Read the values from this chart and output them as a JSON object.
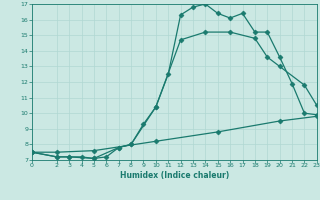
{
  "xlabel": "Humidex (Indice chaleur)",
  "bg_color": "#cbe8e3",
  "line_color": "#1a7a6e",
  "grid_color": "#b0d8d2",
  "xlim": [
    0,
    23
  ],
  "ylim": [
    7,
    17
  ],
  "xticks": [
    0,
    2,
    3,
    4,
    5,
    6,
    7,
    8,
    9,
    10,
    11,
    12,
    13,
    14,
    15,
    16,
    17,
    18,
    19,
    20,
    21,
    22,
    23
  ],
  "yticks": [
    7,
    8,
    9,
    10,
    11,
    12,
    13,
    14,
    15,
    16,
    17
  ],
  "line1_x": [
    0,
    2,
    3,
    4,
    5,
    6,
    7,
    8,
    9,
    10,
    11,
    12,
    13,
    14,
    15,
    16,
    17,
    18,
    19,
    20,
    21,
    22,
    23
  ],
  "line1_y": [
    7.5,
    7.2,
    7.2,
    7.2,
    7.1,
    7.2,
    7.8,
    8.0,
    9.3,
    10.4,
    12.5,
    16.3,
    16.8,
    17.0,
    16.4,
    16.1,
    16.4,
    15.2,
    15.2,
    13.6,
    11.9,
    10.0,
    9.9
  ],
  "line2_x": [
    0,
    2,
    3,
    5,
    7,
    8,
    10,
    12,
    14,
    16,
    18,
    19,
    20,
    22,
    23
  ],
  "line2_y": [
    7.5,
    7.2,
    7.2,
    7.1,
    7.8,
    8.0,
    10.4,
    14.7,
    15.2,
    15.2,
    14.8,
    13.6,
    13.0,
    11.8,
    10.5
  ],
  "line3_x": [
    0,
    2,
    5,
    10,
    15,
    20,
    23
  ],
  "line3_y": [
    7.5,
    7.5,
    7.6,
    8.2,
    8.8,
    9.5,
    9.8
  ],
  "markersize": 2.5,
  "linewidth": 0.9
}
